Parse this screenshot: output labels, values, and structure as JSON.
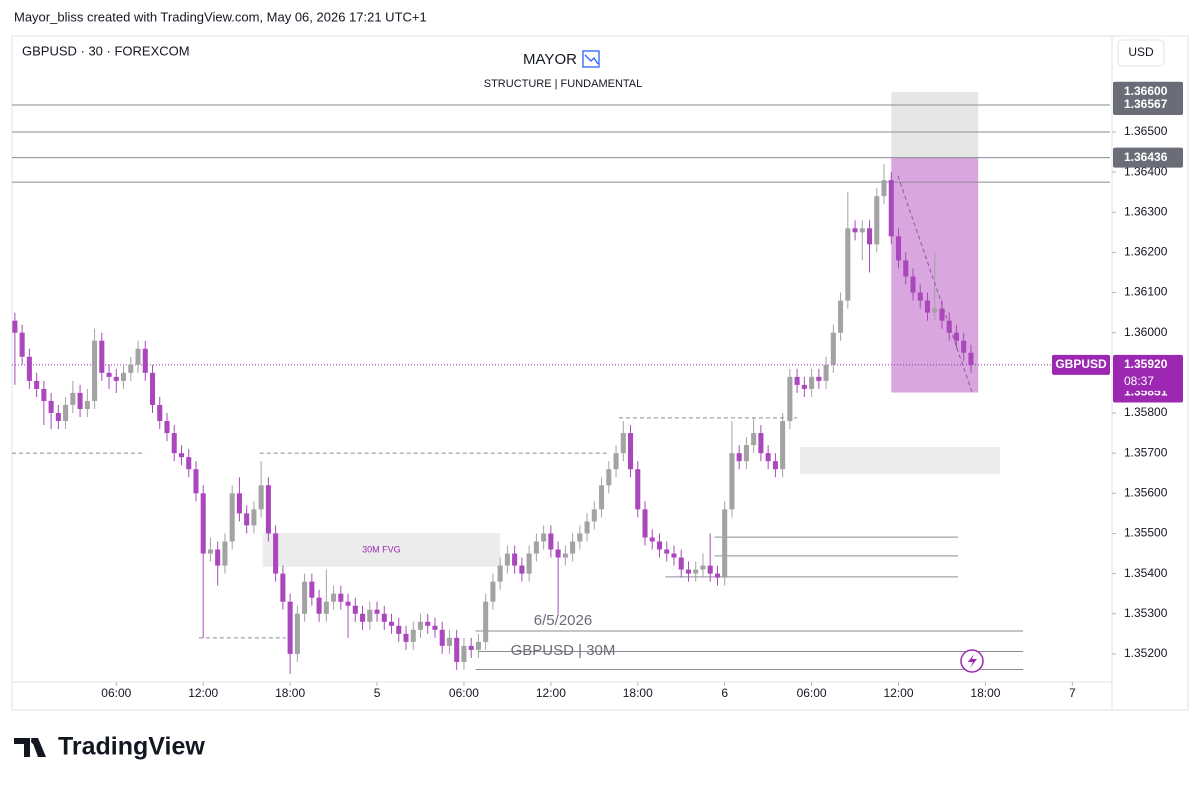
{
  "chart_data": {
    "type": "candlestick",
    "header": "Mayor_bliss created with TradingView.com, May 06, 2026 17:21 UTC+1",
    "symbol": "GBPUSD · 30 · FOREXCOM",
    "title": "MAYOR",
    "subtitle": "STRUCTURE | FUNDAMENTAL",
    "currency": "USD",
    "brand": "TradingView",
    "up_color": "#a3a3a3",
    "down_color": "#ab47bc",
    "grid": false,
    "xlim": [
      -1.2,
      74.6
    ],
    "ylim": [
      1.35135,
      1.36734
    ],
    "xticks": [
      {
        "value": 6,
        "label": "06:00"
      },
      {
        "value": 12,
        "label": "12:00"
      },
      {
        "value": 18,
        "label": "18:00"
      },
      {
        "value": 24,
        "label": "5"
      },
      {
        "value": 30,
        "label": "06:00"
      },
      {
        "value": 36,
        "label": "12:00"
      },
      {
        "value": 42,
        "label": "18:00"
      },
      {
        "value": 48,
        "label": "6"
      },
      {
        "value": 54,
        "label": "06:00"
      },
      {
        "value": 60,
        "label": "12:00"
      },
      {
        "value": 66,
        "label": "18:00"
      },
      {
        "value": 72,
        "label": "7"
      }
    ],
    "yticks": [
      {
        "value": 1.352,
        "label": "1.35200"
      },
      {
        "value": 1.353,
        "label": "1.35300"
      },
      {
        "value": 1.354,
        "label": "1.35400"
      },
      {
        "value": 1.355,
        "label": "1.35500"
      },
      {
        "value": 1.356,
        "label": "1.35600"
      },
      {
        "value": 1.357,
        "label": "1.35700"
      },
      {
        "value": 1.358,
        "label": "1.35800"
      },
      {
        "value": 1.36,
        "label": "1.36000"
      },
      {
        "value": 1.361,
        "label": "1.36100"
      },
      {
        "value": 1.362,
        "label": "1.36200"
      },
      {
        "value": 1.363,
        "label": "1.36300"
      },
      {
        "value": 1.364,
        "label": "1.36400"
      },
      {
        "value": 1.365,
        "label": "1.36500"
      }
    ],
    "x": [
      -1,
      -0.5,
      0,
      0.5,
      1,
      1.5,
      2,
      2.5,
      3,
      3.5,
      4,
      4.5,
      5,
      5.5,
      6,
      6.5,
      7,
      7.5,
      8,
      8.5,
      9,
      9.5,
      10,
      10.5,
      11,
      11.5,
      12,
      12.5,
      13,
      13.5,
      14,
      14.5,
      15,
      15.5,
      16,
      16.5,
      17,
      17.5,
      18,
      18.5,
      19,
      19.5,
      20,
      20.5,
      21,
      21.5,
      22,
      22.5,
      23,
      23.5,
      24,
      24.5,
      25,
      25.5,
      26,
      26.5,
      27,
      27.5,
      28,
      28.5,
      29,
      29.5,
      30,
      30.5,
      31,
      31.5,
      32,
      32.5,
      33,
      33.5,
      34,
      34.5,
      35,
      35.5,
      36,
      36.5,
      37,
      37.5,
      38,
      38.5,
      39,
      39.5,
      40,
      40.5,
      41,
      41.5,
      42,
      42.5,
      43,
      43.5,
      44,
      44.5,
      45,
      45.5,
      46,
      46.5,
      47,
      47.5,
      48,
      48.5,
      49,
      49.5,
      50,
      50.5,
      51,
      51.5,
      52,
      52.5,
      53,
      53.5,
      54,
      54.5,
      55,
      55.5,
      56,
      56.5,
      57,
      57.5,
      58,
      58.5,
      59,
      59.5,
      60,
      60.5,
      61,
      61.5,
      62,
      62.5,
      63,
      63.5,
      64,
      64.5,
      65
    ],
    "candles": [
      [
        1.3603,
        1.3605,
        1.3587,
        1.36
      ],
      [
        1.36,
        1.3602,
        1.3592,
        1.3594
      ],
      [
        1.3594,
        1.3596,
        1.3586,
        1.3588
      ],
      [
        1.3588,
        1.359,
        1.3584,
        1.3586
      ],
      [
        1.3586,
        1.3588,
        1.3577,
        1.3583
      ],
      [
        1.3583,
        1.3585,
        1.3576,
        1.358
      ],
      [
        1.358,
        1.3582,
        1.3576,
        1.3578
      ],
      [
        1.3578,
        1.3584,
        1.3576,
        1.3582
      ],
      [
        1.3582,
        1.3588,
        1.358,
        1.3585
      ],
      [
        1.3585,
        1.3587,
        1.3579,
        1.3581
      ],
      [
        1.3581,
        1.3586,
        1.3579,
        1.3583
      ],
      [
        1.3583,
        1.3601,
        1.3581,
        1.3598
      ],
      [
        1.3598,
        1.36,
        1.3588,
        1.359
      ],
      [
        1.359,
        1.3592,
        1.3586,
        1.3589
      ],
      [
        1.3589,
        1.3591,
        1.3585,
        1.3588
      ],
      [
        1.3588,
        1.3592,
        1.3586,
        1.359
      ],
      [
        1.359,
        1.3594,
        1.3588,
        1.3592
      ],
      [
        1.3592,
        1.3598,
        1.359,
        1.3596
      ],
      [
        1.3596,
        1.3598,
        1.3588,
        1.359
      ],
      [
        1.359,
        1.3592,
        1.358,
        1.3582
      ],
      [
        1.3582,
        1.3584,
        1.3576,
        1.3578
      ],
      [
        1.3578,
        1.358,
        1.3573,
        1.3575
      ],
      [
        1.3575,
        1.3577,
        1.3568,
        1.357
      ],
      [
        1.357,
        1.3572,
        1.3567,
        1.3569
      ],
      [
        1.3569,
        1.3571,
        1.3564,
        1.3566
      ],
      [
        1.3566,
        1.3568,
        1.3558,
        1.356
      ],
      [
        1.356,
        1.3562,
        1.3524,
        1.3545
      ],
      [
        1.3545,
        1.3549,
        1.3543,
        1.3546
      ],
      [
        1.3546,
        1.3548,
        1.3537,
        1.3542
      ],
      [
        1.3542,
        1.355,
        1.354,
        1.3548
      ],
      [
        1.3548,
        1.3562,
        1.3546,
        1.356
      ],
      [
        1.356,
        1.3564,
        1.3553,
        1.3555
      ],
      [
        1.3555,
        1.3557,
        1.355,
        1.3552
      ],
      [
        1.3552,
        1.3558,
        1.355,
        1.3556
      ],
      [
        1.3556,
        1.3568,
        1.3554,
        1.3562
      ],
      [
        1.3562,
        1.3564,
        1.3548,
        1.355
      ],
      [
        1.355,
        1.3552,
        1.3538,
        1.354
      ],
      [
        1.354,
        1.3542,
        1.3531,
        1.3533
      ],
      [
        1.3533,
        1.3535,
        1.3515,
        1.352
      ],
      [
        1.352,
        1.3532,
        1.3518,
        1.353
      ],
      [
        1.353,
        1.354,
        1.3528,
        1.3538
      ],
      [
        1.3538,
        1.354,
        1.3532,
        1.3534
      ],
      [
        1.3534,
        1.3536,
        1.3528,
        1.353
      ],
      [
        1.353,
        1.3541,
        1.3528,
        1.3533
      ],
      [
        1.3533,
        1.3537,
        1.3531,
        1.3535
      ],
      [
        1.3535,
        1.3537,
        1.3531,
        1.3533
      ],
      [
        1.3533,
        1.3535,
        1.3524,
        1.3532
      ],
      [
        1.3532,
        1.3534,
        1.3528,
        1.353
      ],
      [
        1.353,
        1.3532,
        1.3526,
        1.3528
      ],
      [
        1.3528,
        1.3533,
        1.3526,
        1.3531
      ],
      [
        1.3531,
        1.3533,
        1.3528,
        1.353
      ],
      [
        1.353,
        1.3532,
        1.3526,
        1.3528
      ],
      [
        1.3528,
        1.353,
        1.3525,
        1.3527
      ],
      [
        1.3527,
        1.3529,
        1.3523,
        1.3525
      ],
      [
        1.3525,
        1.3527,
        1.3521,
        1.3523
      ],
      [
        1.3523,
        1.3528,
        1.3521,
        1.3526
      ],
      [
        1.3526,
        1.353,
        1.3524,
        1.3528
      ],
      [
        1.3528,
        1.353,
        1.3525,
        1.3527
      ],
      [
        1.3527,
        1.3529,
        1.3524,
        1.3526
      ],
      [
        1.3526,
        1.3528,
        1.352,
        1.3522
      ],
      [
        1.3522,
        1.3526,
        1.352,
        1.3524
      ],
      [
        1.3524,
        1.3526,
        1.3516,
        1.3518
      ],
      [
        1.3518,
        1.3524,
        1.3516,
        1.3522
      ],
      [
        1.3522,
        1.3524,
        1.3519,
        1.3521
      ],
      [
        1.3521,
        1.3525,
        1.3519,
        1.3523
      ],
      [
        1.3523,
        1.3535,
        1.3521,
        1.3533
      ],
      [
        1.3533,
        1.354,
        1.3531,
        1.3538
      ],
      [
        1.3538,
        1.3544,
        1.3536,
        1.3542
      ],
      [
        1.3542,
        1.3547,
        1.354,
        1.3545
      ],
      [
        1.3545,
        1.3547,
        1.354,
        1.3542
      ],
      [
        1.3542,
        1.3544,
        1.3538,
        1.354
      ],
      [
        1.354,
        1.3547,
        1.3538,
        1.3545
      ],
      [
        1.3545,
        1.355,
        1.3543,
        1.3548
      ],
      [
        1.3548,
        1.3552,
        1.3546,
        1.355
      ],
      [
        1.355,
        1.3552,
        1.3544,
        1.3546
      ],
      [
        1.3546,
        1.3548,
        1.353,
        1.3544
      ],
      [
        1.3544,
        1.3547,
        1.3542,
        1.3545
      ],
      [
        1.3545,
        1.355,
        1.3543,
        1.3548
      ],
      [
        1.3548,
        1.3552,
        1.3546,
        1.355
      ],
      [
        1.355,
        1.3555,
        1.3548,
        1.3553
      ],
      [
        1.3553,
        1.3558,
        1.3551,
        1.3556
      ],
      [
        1.3556,
        1.3564,
        1.3554,
        1.3562
      ],
      [
        1.3562,
        1.3568,
        1.356,
        1.3566
      ],
      [
        1.3566,
        1.3572,
        1.3564,
        1.357
      ],
      [
        1.357,
        1.3578,
        1.3568,
        1.3575
      ],
      [
        1.3575,
        1.3577,
        1.3564,
        1.3566
      ],
      [
        1.3566,
        1.3568,
        1.3554,
        1.3556
      ],
      [
        1.3556,
        1.3558,
        1.3547,
        1.3549
      ],
      [
        1.3549,
        1.3551,
        1.3546,
        1.3548
      ],
      [
        1.3548,
        1.355,
        1.3544,
        1.3546
      ],
      [
        1.3546,
        1.3548,
        1.3543,
        1.3545
      ],
      [
        1.3545,
        1.3547,
        1.3542,
        1.3544
      ],
      [
        1.3544,
        1.3546,
        1.3539,
        1.3541
      ],
      [
        1.3541,
        1.3543,
        1.3538,
        1.354
      ],
      [
        1.354,
        1.3543,
        1.3538,
        1.3541
      ],
      [
        1.3541,
        1.3545,
        1.3539,
        1.3542
      ],
      [
        1.3542,
        1.355,
        1.3538,
        1.354
      ],
      [
        1.354,
        1.3542,
        1.3537,
        1.3539
      ],
      [
        1.3539,
        1.3558,
        1.3537,
        1.3556
      ],
      [
        1.3556,
        1.3578,
        1.3554,
        1.357
      ],
      [
        1.357,
        1.3572,
        1.3566,
        1.3568
      ],
      [
        1.3568,
        1.3574,
        1.3566,
        1.3572
      ],
      [
        1.3572,
        1.3579,
        1.357,
        1.3575
      ],
      [
        1.3575,
        1.3577,
        1.3568,
        1.357
      ],
      [
        1.357,
        1.3572,
        1.3566,
        1.3568
      ],
      [
        1.3568,
        1.357,
        1.3564,
        1.3566
      ],
      [
        1.3566,
        1.358,
        1.3564,
        1.3578
      ],
      [
        1.3578,
        1.3591,
        1.3576,
        1.3589
      ],
      [
        1.3589,
        1.3591,
        1.3585,
        1.3587
      ],
      [
        1.3587,
        1.3589,
        1.3584,
        1.3586
      ],
      [
        1.3586,
        1.3591,
        1.3584,
        1.3589
      ],
      [
        1.3589,
        1.3591,
        1.3586,
        1.3588
      ],
      [
        1.3588,
        1.3594,
        1.3586,
        1.3592
      ],
      [
        1.3592,
        1.3602,
        1.359,
        1.36
      ],
      [
        1.36,
        1.361,
        1.3598,
        1.3608
      ],
      [
        1.3608,
        1.3635,
        1.3606,
        1.3626
      ],
      [
        1.3626,
        1.3628,
        1.3623,
        1.3625
      ],
      [
        1.3625,
        1.3628,
        1.3618,
        1.3626
      ],
      [
        1.3626,
        1.3628,
        1.3615,
        1.3622
      ],
      [
        1.3622,
        1.3636,
        1.362,
        1.3634
      ],
      [
        1.3634,
        1.3642,
        1.3632,
        1.3638
      ],
      [
        1.3638,
        1.364,
        1.3622,
        1.3624
      ],
      [
        1.3624,
        1.3626,
        1.3616,
        1.3618
      ],
      [
        1.3618,
        1.362,
        1.3612,
        1.3614
      ],
      [
        1.3614,
        1.3616,
        1.3608,
        1.361
      ],
      [
        1.361,
        1.3612,
        1.3606,
        1.3608
      ],
      [
        1.3608,
        1.361,
        1.3603,
        1.3605
      ],
      [
        1.3605,
        1.362,
        1.3603,
        1.3606
      ],
      [
        1.3606,
        1.3608,
        1.3601,
        1.3603
      ],
      [
        1.3603,
        1.3605,
        1.3598,
        1.36
      ],
      [
        1.36,
        1.3602,
        1.3596,
        1.3598
      ],
      [
        1.3598,
        1.36,
        1.3593,
        1.3595
      ],
      [
        1.3595,
        1.3597,
        1.359,
        1.3592
      ]
    ],
    "zones": [
      {
        "x": [
          59.5,
          65.5
        ],
        "y": [
          1.36436,
          1.366
        ],
        "color": "#e6e6e6"
      },
      {
        "x": [
          59.5,
          65.5
        ],
        "y": [
          1.35851,
          1.36436
        ],
        "color": "#d9a6df"
      },
      {
        "x": [
          16.1,
          32.5
        ],
        "y": [
          1.35417,
          1.35501
        ],
        "color": "#ececec",
        "label": "30M FVG"
      },
      {
        "x": [
          53.2,
          67
        ],
        "y": [
          1.35648,
          1.35715
        ],
        "color": "#ececec"
      }
    ],
    "hlines": [
      {
        "value": 1.36567,
        "style": "solid"
      },
      {
        "value": 1.365,
        "style": "solid"
      },
      {
        "value": 1.36436,
        "style": "solid"
      },
      {
        "value": 1.36375,
        "style": "solid"
      },
      {
        "value": 1.357,
        "x": [
          -1.2,
          8
        ],
        "style": "dashed"
      },
      {
        "value": 1.357,
        "x": [
          15.9,
          39.9
        ],
        "style": "dashed"
      },
      {
        "value": 1.35788,
        "x": [
          40.7,
          53
        ],
        "style": "dashed"
      },
      {
        "value": 1.3524,
        "x": [
          11.7,
          17.7
        ],
        "style": "dashed"
      },
      {
        "value": 1.35491,
        "x": [
          47.3,
          64.1
        ],
        "style": "solid"
      },
      {
        "value": 1.35444,
        "x": [
          47.3,
          64.1
        ],
        "style": "solid"
      },
      {
        "value": 1.35392,
        "x": [
          43.9,
          64.1
        ],
        "style": "solid"
      },
      {
        "value": 1.35257,
        "x": [
          30.8,
          68.6
        ],
        "style": "solid"
      },
      {
        "value": 1.35206,
        "x": [
          31,
          68.6
        ],
        "style": "solid"
      },
      {
        "value": 1.35161,
        "x": [
          30.8,
          68.6
        ],
        "style": "solid"
      }
    ],
    "notes": [
      "6/5/2026",
      "GBPUSD | 30M"
    ],
    "price_tags": [
      {
        "value": 1.366,
        "label": "1.36600",
        "color": "#6a6d78"
      },
      {
        "value": 1.36567,
        "label": "1.36567",
        "color": "#6a6d78"
      },
      {
        "value": 1.36436,
        "label": "1.36436",
        "color": "#6a6d78"
      },
      {
        "value": 1.35851,
        "label": "1.35851",
        "color": "#9c27b0"
      }
    ],
    "last_price": {
      "name": "GBPUSD",
      "value": 1.3592,
      "label": "1.35920",
      "countdown": "08:37",
      "color": "#9c27b0"
    }
  }
}
